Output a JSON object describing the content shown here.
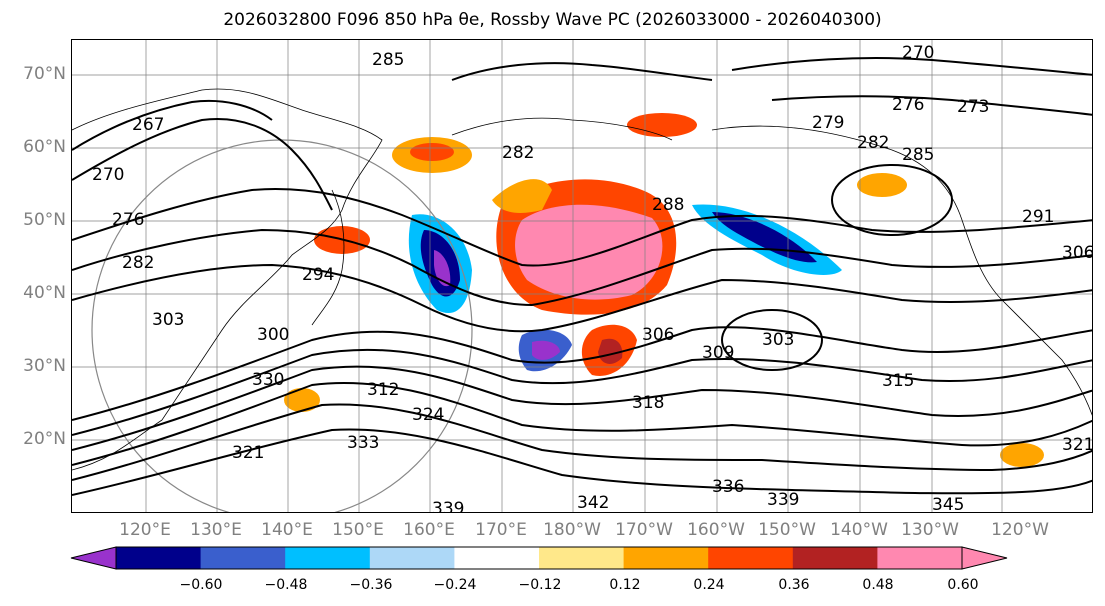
{
  "title": "2026032800 F096 850 hPa θe, Rossby Wave PC (2026033000 - 2026040300)",
  "lat_labels": [
    "70°N",
    "60°N",
    "50°N",
    "40°N",
    "30°N",
    "20°N"
  ],
  "lon_labels": [
    "120°E",
    "130°E",
    "140°E",
    "150°E",
    "160°E",
    "170°E",
    "180°W",
    "170°W",
    "160°W",
    "150°W",
    "140°W",
    "130°W",
    "120°W"
  ],
  "contour_labels": [
    "285",
    "270",
    "276",
    "273",
    "267",
    "279",
    "282",
    "285",
    "291",
    "306",
    "270",
    "276",
    "282",
    "282",
    "288",
    "294",
    "300",
    "303",
    "306",
    "309",
    "303",
    "315",
    "312",
    "324",
    "318",
    "330",
    "321",
    "333",
    "336",
    "339",
    "342",
    "339",
    "345",
    "321"
  ],
  "colorbar": {
    "ticks": [
      "−0.60",
      "−0.48",
      "−0.36",
      "−0.24",
      "−0.12",
      "0.12",
      "0.24",
      "0.36",
      "0.48",
      "0.60"
    ],
    "colors": [
      "#9932cc",
      "#00008b",
      "#3a5fcd",
      "#00bfff",
      "#add8f7",
      "#ffffff",
      "#ffe88a",
      "#ffa500",
      "#ff4500",
      "#b22222",
      "#ff88b0",
      "#ff88b0"
    ]
  },
  "colors": {
    "contour": "#000000",
    "grid": "#808080",
    "axis_label": "#808080"
  }
}
